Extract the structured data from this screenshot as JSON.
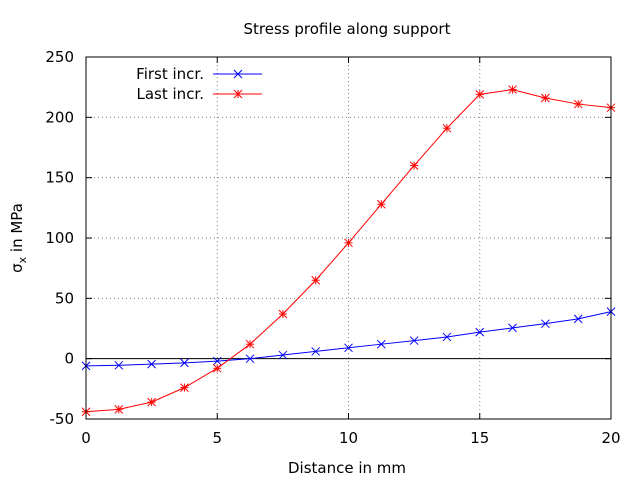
{
  "chart_data": {
    "type": "line",
    "title": "Stress profile along support",
    "xlabel": "Distance in mm",
    "ylabel_main": "σ",
    "ylabel_sub": "x",
    "ylabel_rest": " in MPa",
    "xlim": [
      0,
      20
    ],
    "ylim": [
      -50,
      250
    ],
    "x_ticks": [
      "0",
      "5",
      "10",
      "15",
      "20"
    ],
    "y_ticks": [
      "-50",
      "0",
      "50",
      "100",
      "150",
      "200",
      "250"
    ],
    "grid": true,
    "zero_line": true,
    "legend_position": "top-left",
    "x": [
      0,
      1.25,
      2.5,
      3.75,
      5,
      6.25,
      7.5,
      8.75,
      10,
      11.25,
      12.5,
      13.75,
      15,
      16.25,
      17.5,
      18.75,
      20
    ],
    "series": [
      {
        "name": "First incr.",
        "color": "#0000ff",
        "marker": "x",
        "values": [
          -6,
          -5.5,
          -4.5,
          -3.5,
          -2,
          0,
          3,
          6,
          9,
          12,
          15,
          18,
          22,
          25.5,
          29,
          33,
          39
        ]
      },
      {
        "name": "Last incr.",
        "color": "#ff0000",
        "marker": "star",
        "values": [
          -44,
          -42,
          -36,
          -24,
          -8,
          12,
          37,
          65,
          96,
          128,
          160,
          191,
          219,
          223,
          216,
          211,
          208
        ]
      }
    ]
  }
}
